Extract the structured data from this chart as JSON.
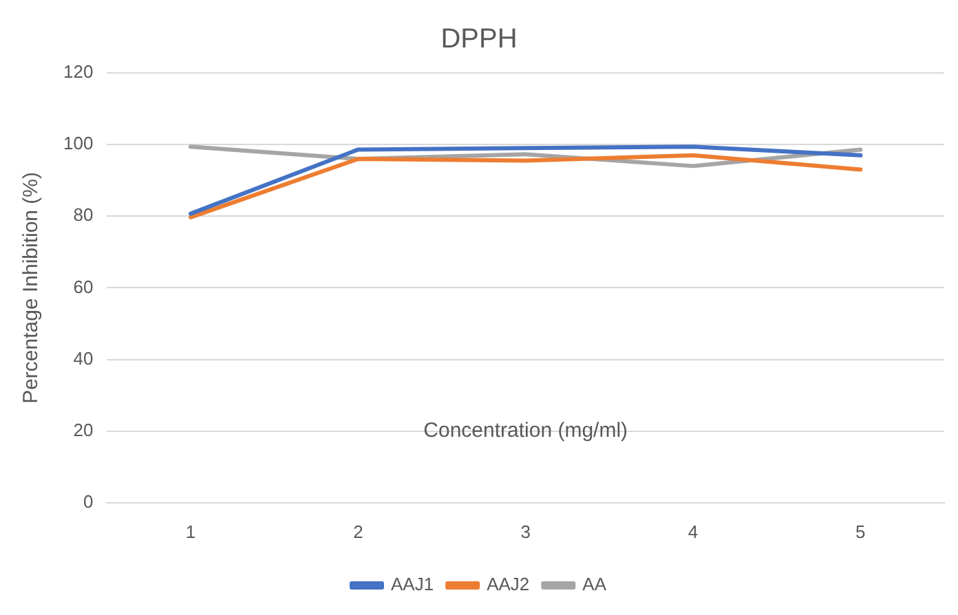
{
  "chart_data": {
    "type": "line",
    "title": "DPPH",
    "xlabel": "Concentration (mg/ml)",
    "ylabel": "Percentage Inhibition (%)",
    "categories": [
      "1",
      "2",
      "3",
      "4",
      "5"
    ],
    "series": [
      {
        "name": "AAJ1",
        "color": "#4472c4",
        "values": [
          80.7,
          98.6,
          99,
          99.4,
          97
        ]
      },
      {
        "name": "AAJ2",
        "color": "#ed7d31",
        "values": [
          79.7,
          96,
          95.5,
          97,
          93
        ]
      },
      {
        "name": "AA",
        "color": "#a5a5a5",
        "values": [
          99.4,
          96,
          97.3,
          94,
          98.6
        ]
      }
    ],
    "ylim": [
      0,
      120
    ],
    "yticks": [
      0,
      20,
      40,
      60,
      80,
      100,
      120
    ],
    "grid": "y",
    "legend": "bottom",
    "marker": "none",
    "line_style": "solid"
  }
}
